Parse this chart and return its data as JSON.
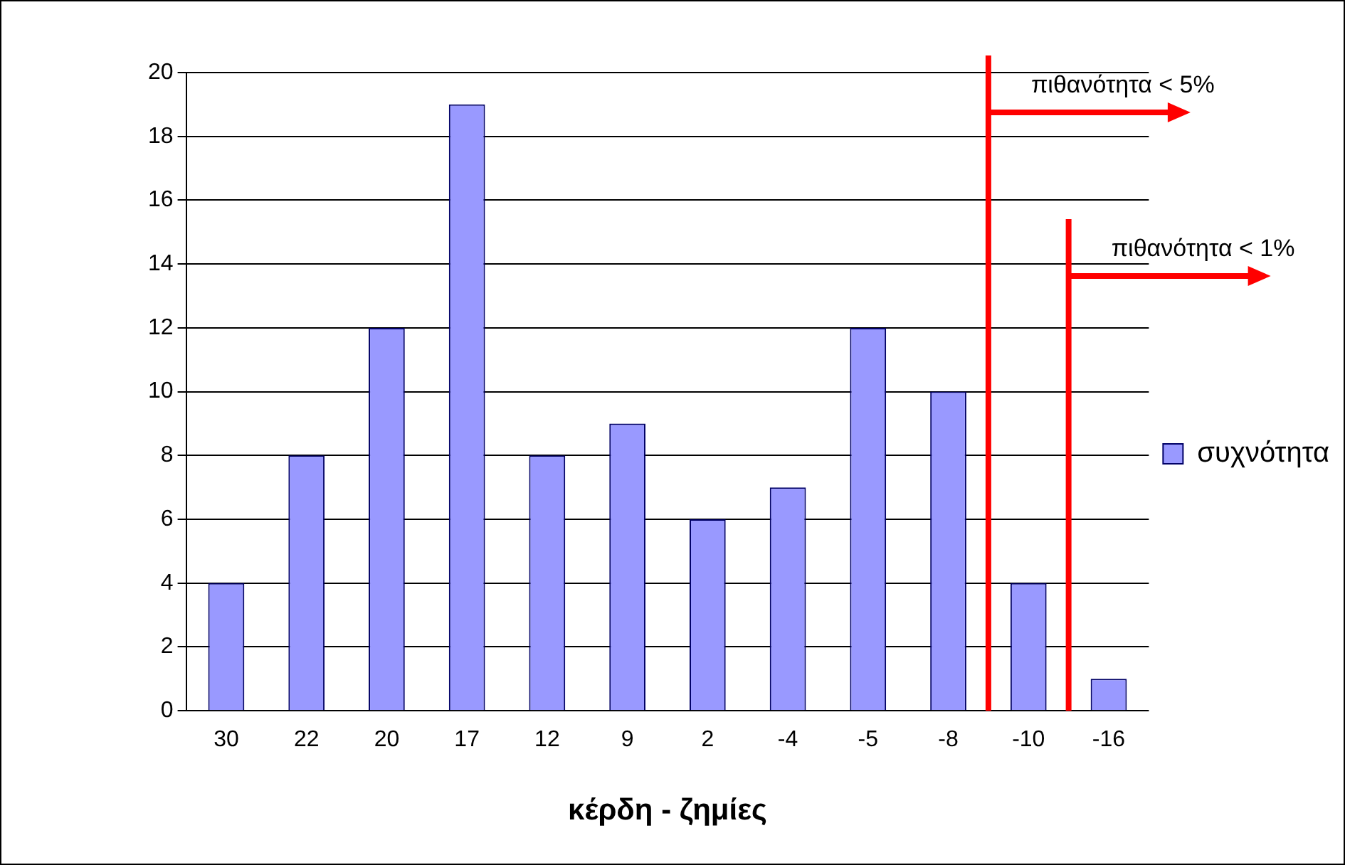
{
  "chart_data": {
    "type": "bar",
    "xlabel": "κέρδη - ζημίες",
    "categories": [
      "30",
      "22",
      "20",
      "17",
      "12",
      "9",
      "2",
      "-4",
      "-5",
      "-8",
      "-10",
      "-16"
    ],
    "series": [
      {
        "name": "συχνότητα",
        "color": "#9999ff",
        "values": [
          4,
          8,
          12,
          19,
          8,
          9,
          6,
          7,
          12,
          10,
          4,
          1
        ]
      }
    ],
    "ylim": [
      0,
      20
    ],
    "yticks": [
      0,
      2,
      4,
      6,
      8,
      10,
      12,
      14,
      16,
      18,
      20
    ],
    "grid": "y",
    "legend": "right",
    "annotations": [
      "πιθανότητα < 5%",
      "πιθανότητα < 1%"
    ]
  }
}
